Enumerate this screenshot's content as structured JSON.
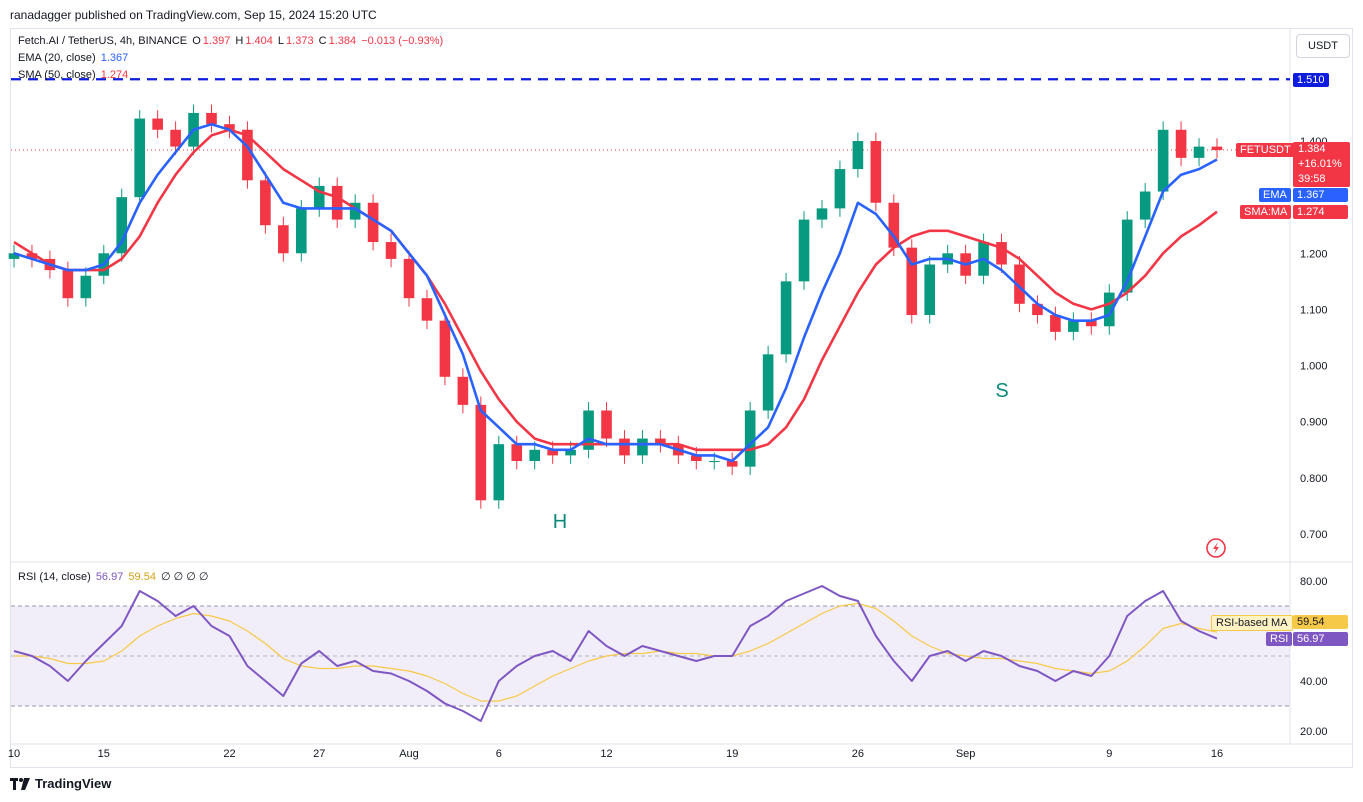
{
  "header": {
    "publisher_line": "ranadagger published on TradingView.com, Sep 15, 2024 15:20 UTC"
  },
  "symbol": {
    "name": "Fetch.AI / TetherUS, 4h, BINANCE",
    "o_label": "O",
    "o": "1.397",
    "h_label": "H",
    "h": "1.404",
    "l_label": "L",
    "l": "1.373",
    "c_label": "C",
    "c": "1.384",
    "change": "−0.013 (−0.93%)"
  },
  "indicators": {
    "ema_label": "EMA (20, close)",
    "ema_value": "1.367",
    "sma_label": "SMA (50, close)",
    "sma_value": "1.274",
    "rsi_label": "RSI (14, close)",
    "rsi_value": "56.97",
    "rsi_ma_value": "59.54",
    "rsi_extra": "∅ ∅ ∅ ∅"
  },
  "currency_button": "USDT",
  "price_axis": {
    "ticks": [
      "1.400",
      "1.300",
      "1.200",
      "1.100",
      "1.000",
      "0.900",
      "0.800",
      "0.700"
    ],
    "tick_values": [
      1.4,
      1.3,
      1.2,
      1.1,
      1.0,
      0.9,
      0.8,
      0.7
    ],
    "resistance_label": "1.510"
  },
  "price_tags": {
    "symbol": "FETUSDT",
    "last": "1.384",
    "change_pct": "+16.01%",
    "countdown": "39:58",
    "ema_name": "EMA",
    "ema_value": "1.367",
    "sma_name": "SMA:MA",
    "sma_value": "1.274"
  },
  "rsi_axis": {
    "ticks": [
      "80.00",
      "40.00",
      "20.00"
    ],
    "tick_values": [
      80,
      40,
      20
    ]
  },
  "rsi_tags": {
    "ma_name": "RSI-based MA",
    "ma_value": "59.54",
    "rsi_name": "RSI",
    "rsi_value": "56.97"
  },
  "time_axis": [
    "10",
    "15",
    "22",
    "27",
    "Aug",
    "6",
    "12",
    "19",
    "26",
    "Sep",
    "9",
    "16"
  ],
  "annotations": {
    "head_label": "H",
    "shoulder_label": "S"
  },
  "footer": {
    "brand": "TradingView"
  },
  "colors": {
    "up": "#089981",
    "down": "#f23645",
    "ema": "#2962ff",
    "sma": "#f23645",
    "rsi": "#7e57c2",
    "rsi_ma": "#f7c948",
    "resistance": "#0d1cde",
    "annotation": "#0a8a7a"
  },
  "chart_data": [
    {
      "type": "candlestick",
      "title": "Fetch.AI / TetherUS, 4h, BINANCE",
      "ylim": [
        0.67,
        1.55
      ],
      "resistance": 1.51,
      "last_price": 1.384,
      "ema_last": 1.367,
      "sma_last": 1.274,
      "x": [
        "Jul 10",
        "Jul 11",
        "Jul 12",
        "Jul 13",
        "Jul 14",
        "Jul 15",
        "Jul 16",
        "Jul 17",
        "Jul 18",
        "Jul 19",
        "Jul 20",
        "Jul 21",
        "Jul 22",
        "Jul 23",
        "Jul 24",
        "Jul 25",
        "Jul 26",
        "Jul 27",
        "Jul 28",
        "Jul 29",
        "Jul 30",
        "Jul 31",
        "Aug 1",
        "Aug 2",
        "Aug 3",
        "Aug 4",
        "Aug 5",
        "Aug 6",
        "Aug 7",
        "Aug 8",
        "Aug 9",
        "Aug 10",
        "Aug 11",
        "Aug 12",
        "Aug 13",
        "Aug 14",
        "Aug 15",
        "Aug 16",
        "Aug 17",
        "Aug 18",
        "Aug 19",
        "Aug 20",
        "Aug 21",
        "Aug 22",
        "Aug 23",
        "Aug 24",
        "Aug 25",
        "Aug 26",
        "Aug 27",
        "Aug 28",
        "Aug 29",
        "Aug 30",
        "Aug 31",
        "Sep 1",
        "Sep 2",
        "Sep 3",
        "Sep 4",
        "Sep 5",
        "Sep 6",
        "Sep 7",
        "Sep 8",
        "Sep 9",
        "Sep 10",
        "Sep 11",
        "Sep 12",
        "Sep 13",
        "Sep 14",
        "Sep 15"
      ],
      "close": [
        1.2,
        1.19,
        1.17,
        1.12,
        1.16,
        1.2,
        1.3,
        1.44,
        1.42,
        1.39,
        1.45,
        1.43,
        1.42,
        1.33,
        1.25,
        1.2,
        1.28,
        1.32,
        1.26,
        1.29,
        1.22,
        1.19,
        1.12,
        1.08,
        0.98,
        0.93,
        0.76,
        0.86,
        0.83,
        0.85,
        0.84,
        0.85,
        0.92,
        0.87,
        0.84,
        0.87,
        0.86,
        0.84,
        0.83,
        0.83,
        0.82,
        0.92,
        1.02,
        1.15,
        1.26,
        1.28,
        1.35,
        1.4,
        1.29,
        1.21,
        1.09,
        1.18,
        1.2,
        1.16,
        1.22,
        1.18,
        1.11,
        1.09,
        1.06,
        1.08,
        1.07,
        1.13,
        1.26,
        1.31,
        1.42,
        1.37,
        1.39,
        1.384
      ],
      "ema": [
        1.2,
        1.19,
        1.18,
        1.17,
        1.17,
        1.18,
        1.22,
        1.29,
        1.34,
        1.38,
        1.42,
        1.43,
        1.42,
        1.39,
        1.34,
        1.29,
        1.28,
        1.28,
        1.28,
        1.28,
        1.26,
        1.24,
        1.2,
        1.16,
        1.09,
        1.02,
        0.92,
        0.89,
        0.86,
        0.86,
        0.85,
        0.85,
        0.87,
        0.86,
        0.86,
        0.86,
        0.86,
        0.85,
        0.84,
        0.84,
        0.83,
        0.86,
        0.89,
        0.96,
        1.05,
        1.13,
        1.2,
        1.29,
        1.27,
        1.23,
        1.18,
        1.19,
        1.19,
        1.18,
        1.19,
        1.17,
        1.14,
        1.11,
        1.09,
        1.08,
        1.08,
        1.09,
        1.15,
        1.23,
        1.31,
        1.34,
        1.35,
        1.367
      ],
      "sma": [
        1.22,
        1.2,
        1.18,
        1.17,
        1.17,
        1.17,
        1.19,
        1.23,
        1.29,
        1.34,
        1.38,
        1.41,
        1.42,
        1.41,
        1.38,
        1.35,
        1.33,
        1.31,
        1.3,
        1.28,
        1.26,
        1.24,
        1.2,
        1.16,
        1.11,
        1.05,
        0.99,
        0.94,
        0.9,
        0.87,
        0.86,
        0.86,
        0.86,
        0.86,
        0.86,
        0.86,
        0.86,
        0.86,
        0.85,
        0.85,
        0.85,
        0.85,
        0.86,
        0.89,
        0.94,
        1.01,
        1.07,
        1.13,
        1.18,
        1.21,
        1.23,
        1.24,
        1.24,
        1.23,
        1.22,
        1.21,
        1.19,
        1.16,
        1.13,
        1.11,
        1.1,
        1.11,
        1.13,
        1.16,
        1.2,
        1.23,
        1.25,
        1.274
      ]
    },
    {
      "type": "line",
      "title": "RSI (14, close)",
      "ylim": [
        15,
        85
      ],
      "bands": [
        70,
        50,
        30
      ],
      "x": [
        "Jul 10",
        "Jul 11",
        "Jul 12",
        "Jul 13",
        "Jul 14",
        "Jul 15",
        "Jul 16",
        "Jul 17",
        "Jul 18",
        "Jul 19",
        "Jul 20",
        "Jul 21",
        "Jul 22",
        "Jul 23",
        "Jul 24",
        "Jul 25",
        "Jul 26",
        "Jul 27",
        "Jul 28",
        "Jul 29",
        "Jul 30",
        "Jul 31",
        "Aug 1",
        "Aug 2",
        "Aug 3",
        "Aug 4",
        "Aug 5",
        "Aug 6",
        "Aug 7",
        "Aug 8",
        "Aug 9",
        "Aug 10",
        "Aug 11",
        "Aug 12",
        "Aug 13",
        "Aug 14",
        "Aug 15",
        "Aug 16",
        "Aug 17",
        "Aug 18",
        "Aug 19",
        "Aug 20",
        "Aug 21",
        "Aug 22",
        "Aug 23",
        "Aug 24",
        "Aug 25",
        "Aug 26",
        "Aug 27",
        "Aug 28",
        "Aug 29",
        "Aug 30",
        "Aug 31",
        "Sep 1",
        "Sep 2",
        "Sep 3",
        "Sep 4",
        "Sep 5",
        "Sep 6",
        "Sep 7",
        "Sep 8",
        "Sep 9",
        "Sep 10",
        "Sep 11",
        "Sep 12",
        "Sep 13",
        "Sep 14",
        "Sep 15"
      ],
      "series": [
        {
          "name": "RSI",
          "values": [
            52,
            50,
            46,
            40,
            48,
            55,
            62,
            76,
            72,
            66,
            70,
            62,
            58,
            46,
            40,
            34,
            47,
            52,
            46,
            48,
            44,
            43,
            40,
            36,
            31,
            28,
            24,
            40,
            46,
            50,
            52,
            48,
            60,
            54,
            50,
            54,
            52,
            50,
            48,
            50,
            50,
            62,
            66,
            72,
            75,
            78,
            74,
            72,
            58,
            48,
            40,
            50,
            52,
            48,
            52,
            50,
            46,
            44,
            40,
            44,
            42,
            50,
            66,
            72,
            76,
            64,
            60,
            56.97
          ]
        },
        {
          "name": "RSI-based MA",
          "values": [
            50,
            50,
            49,
            47,
            47,
            48,
            52,
            58,
            62,
            65,
            67,
            66,
            64,
            60,
            55,
            49,
            46,
            45,
            45,
            46,
            46,
            45,
            44,
            42,
            39,
            35,
            32,
            32,
            34,
            38,
            42,
            45,
            48,
            50,
            51,
            51,
            52,
            51,
            51,
            50,
            50,
            52,
            55,
            59,
            63,
            67,
            70,
            71,
            69,
            64,
            58,
            54,
            51,
            50,
            49,
            49,
            48,
            47,
            45,
            44,
            43,
            44,
            48,
            54,
            61,
            63,
            61,
            59.54
          ]
        }
      ]
    }
  ]
}
